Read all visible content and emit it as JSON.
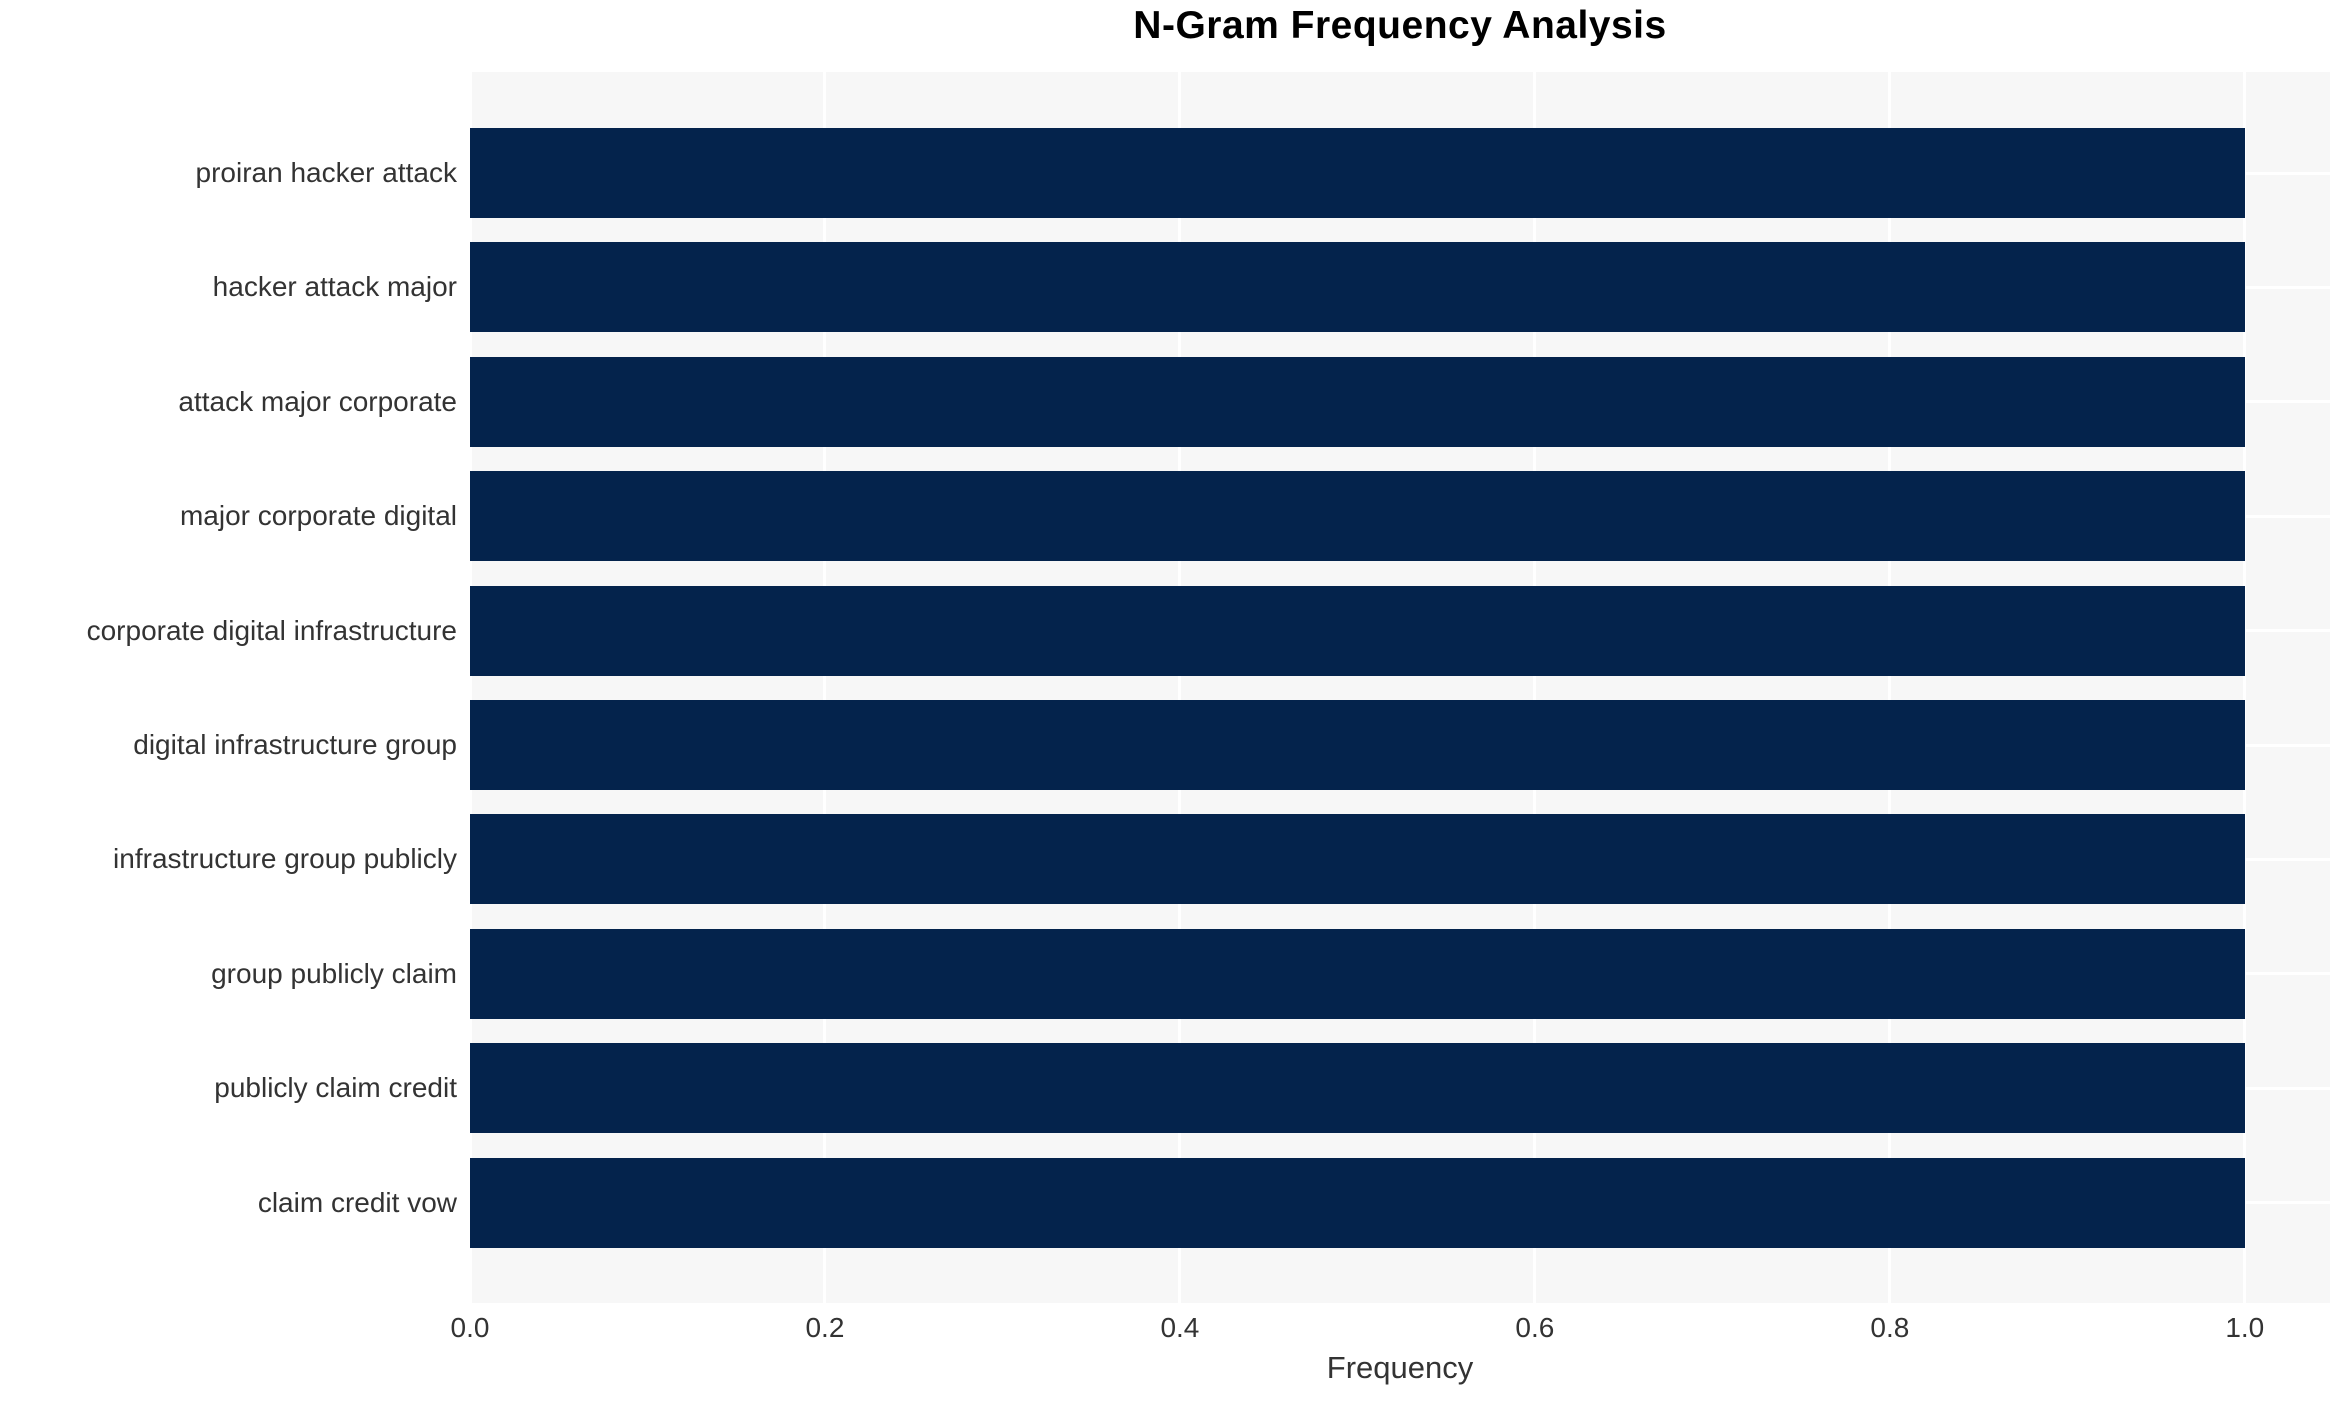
{
  "chart_data": {
    "type": "bar",
    "orientation": "horizontal",
    "title": "N-Gram Frequency Analysis",
    "xlabel": "Frequency",
    "ylabel": "",
    "categories": [
      "proiran hacker attack",
      "hacker attack major",
      "attack major corporate",
      "major corporate digital",
      "corporate digital infrastructure",
      "digital infrastructure group",
      "infrastructure group publicly",
      "group publicly claim",
      "publicly claim credit",
      "claim credit vow"
    ],
    "values": [
      1.0,
      1.0,
      1.0,
      1.0,
      1.0,
      1.0,
      1.0,
      1.0,
      1.0,
      1.0
    ],
    "x_ticks": [
      "0.0",
      "0.2",
      "0.4",
      "0.6",
      "0.8",
      "1.0"
    ],
    "x_tick_values": [
      0.0,
      0.2,
      0.4,
      0.6,
      0.8,
      1.0
    ],
    "xlim": [
      0.0,
      1.048
    ],
    "grid": true,
    "legend": false,
    "colors": {
      "bar": "#04234c",
      "plot_background": "#f7f7f7",
      "gridline": "#ffffff",
      "tick_label": "#333333",
      "title": "#000000"
    }
  }
}
